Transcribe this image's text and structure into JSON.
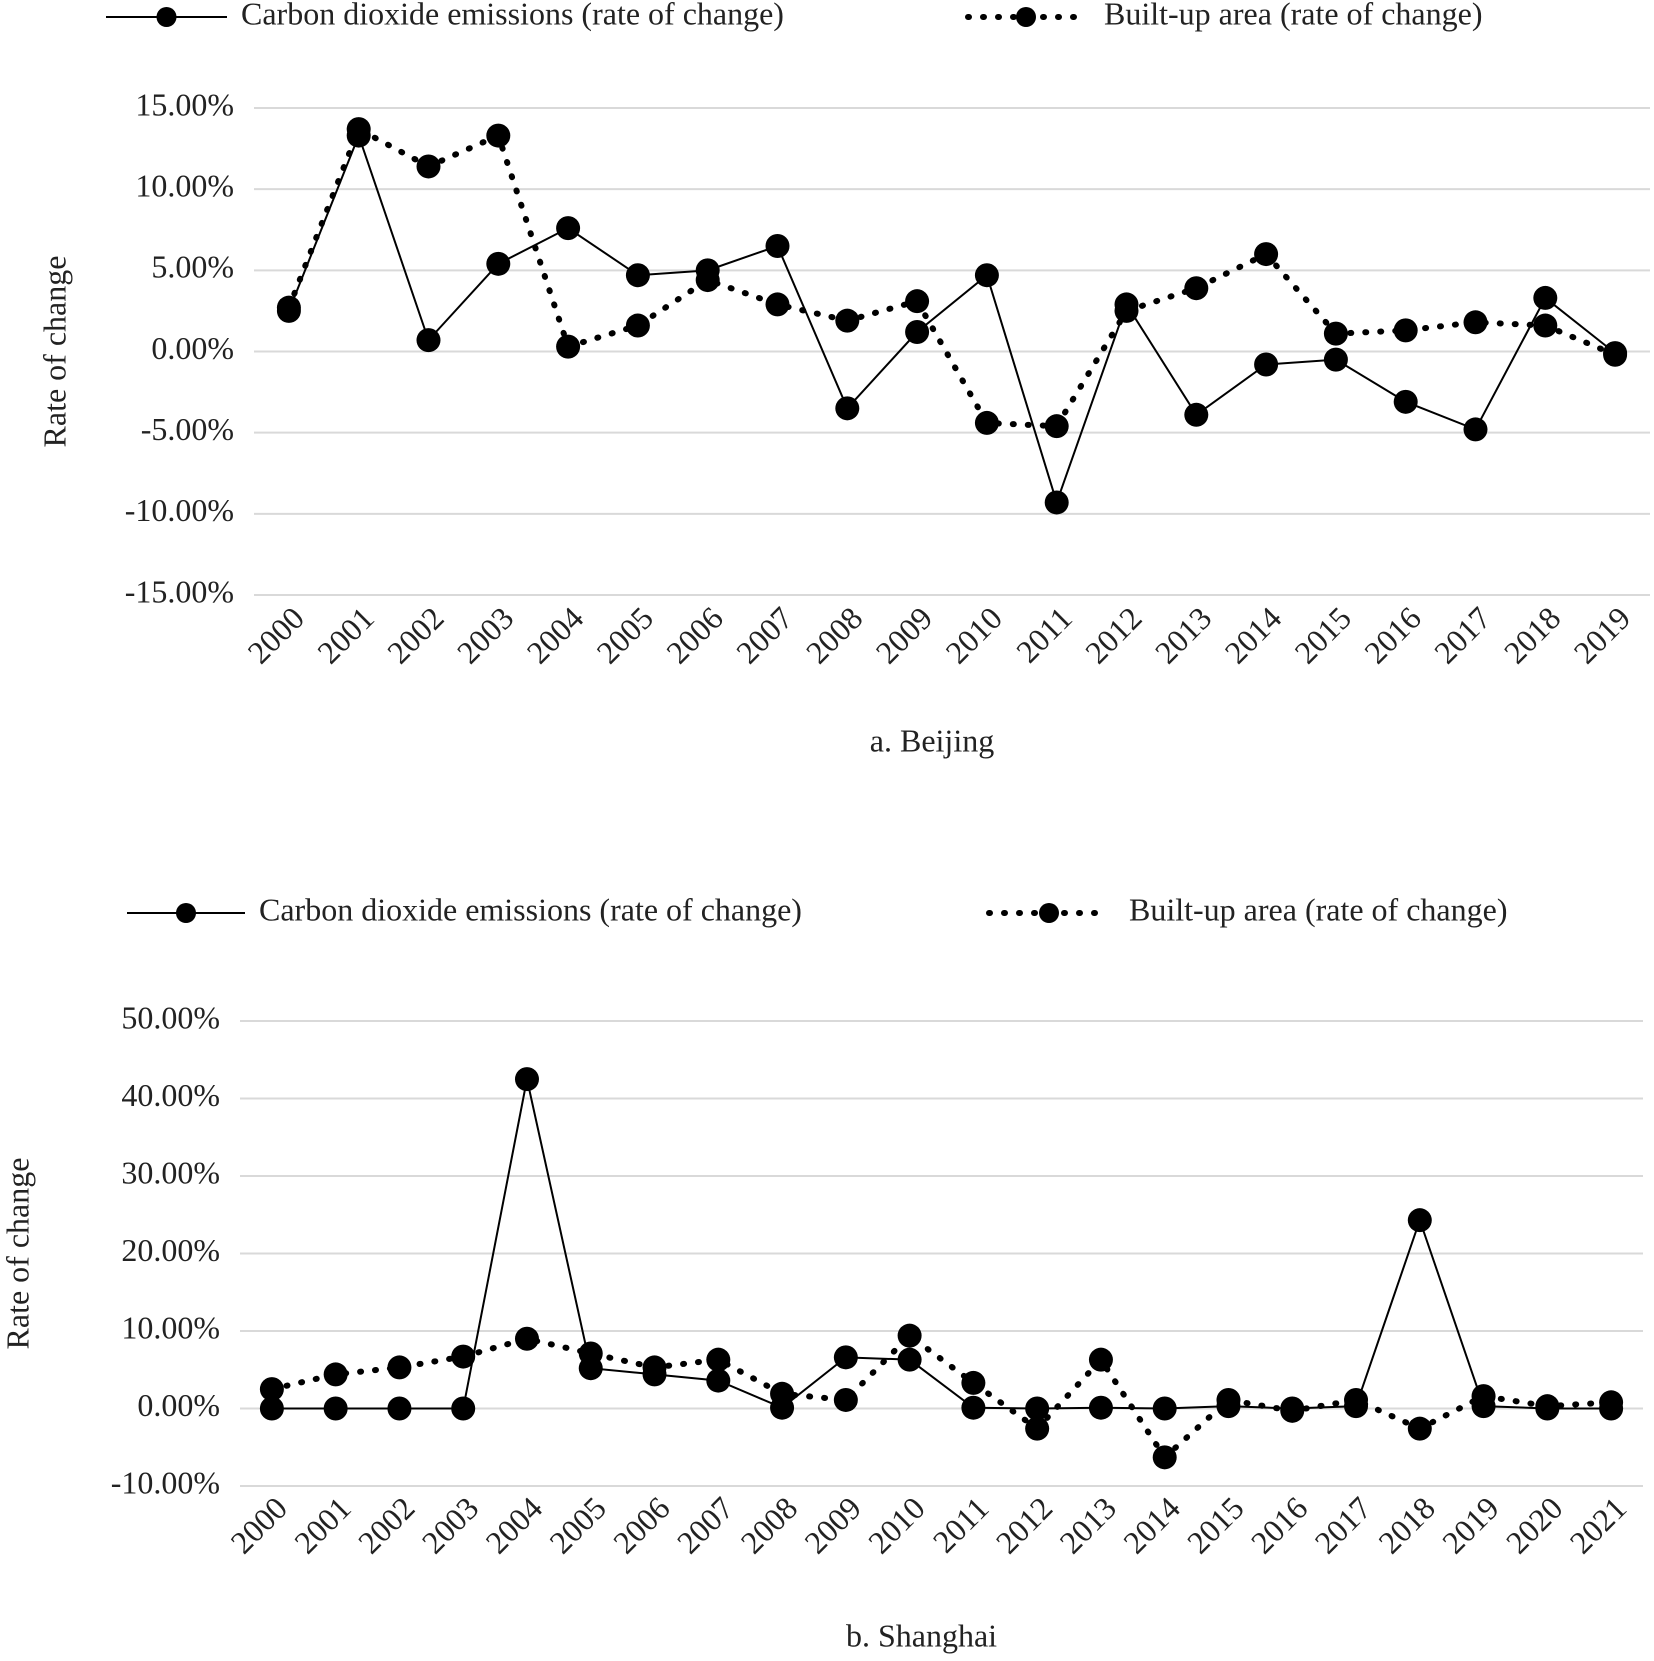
{
  "chart_data": [
    {
      "type": "line",
      "title": "a. Beijing",
      "ylabel": "Rate of change",
      "categories": [
        "2000",
        "2001",
        "2002",
        "2003",
        "2004",
        "2005",
        "2006",
        "2007",
        "2008",
        "2009",
        "2010",
        "2011",
        "2012",
        "2013",
        "2014",
        "2015",
        "2016",
        "2017",
        "2018",
        "2019"
      ],
      "series": [
        {
          "name": "Carbon dioxide emissions (rate of change)",
          "color": "#000000",
          "line_style": "solid",
          "values": [
            2.5,
            13.3,
            0.7,
            5.4,
            7.6,
            4.7,
            5.0,
            6.5,
            -3.5,
            1.2,
            4.7,
            -9.3,
            2.9,
            -3.9,
            -0.8,
            -0.5,
            -3.1,
            -4.8,
            3.3,
            -0.1
          ]
        },
        {
          "name": "Built-up area (rate of change)",
          "color": "#000000",
          "line_style": "dotted",
          "values": [
            2.7,
            13.7,
            11.4,
            13.3,
            0.3,
            1.6,
            4.4,
            2.9,
            1.9,
            3.1,
            -4.4,
            -4.6,
            2.5,
            3.9,
            6.0,
            1.1,
            1.3,
            1.8,
            1.6,
            -0.2
          ]
        }
      ],
      "ylim": [
        -15,
        15
      ],
      "yticks": [
        {
          "value": -15,
          "label": "-15.00%"
        },
        {
          "value": -10,
          "label": "-10.00%"
        },
        {
          "value": -5,
          "label": "-5.00%"
        },
        {
          "value": 0,
          "label": "0.00%"
        },
        {
          "value": 5,
          "label": "5.00%"
        },
        {
          "value": 10,
          "label": "10.00%"
        },
        {
          "value": 15,
          "label": "15.00%"
        }
      ],
      "grid": true,
      "legend": "top"
    },
    {
      "type": "line",
      "title": "b. Shanghai",
      "ylabel": "Rate of change",
      "categories": [
        "2000",
        "2001",
        "2002",
        "2003",
        "2004",
        "2005",
        "2006",
        "2007",
        "2008",
        "2009",
        "2010",
        "2011",
        "2012",
        "2013",
        "2014",
        "2015",
        "2016",
        "2017",
        "2018",
        "2019",
        "2020",
        "2021"
      ],
      "series": [
        {
          "name": "Carbon dioxide emissions (rate of change)",
          "color": "#000000",
          "line_style": "solid",
          "values": [
            0,
            0,
            0,
            0,
            42.5,
            5.2,
            4.4,
            3.6,
            0.1,
            6.6,
            6.3,
            0.1,
            0,
            0.1,
            0,
            0.3,
            0,
            0.3,
            24.3,
            0.3,
            0,
            0
          ]
        },
        {
          "name": "Built-up area (rate of change)",
          "color": "#000000",
          "line_style": "dotted",
          "values": [
            2.5,
            4.4,
            5.3,
            6.7,
            9.0,
            7.1,
            5.3,
            6.3,
            1.9,
            1.1,
            9.4,
            3.3,
            -2.6,
            6.3,
            -6.3,
            1.1,
            -0.3,
            1.1,
            -2.6,
            1.6,
            0.3,
            0.8
          ]
        }
      ],
      "ylim": [
        -10,
        50
      ],
      "yticks": [
        {
          "value": -10,
          "label": "-10.00%"
        },
        {
          "value": 0,
          "label": "0.00%"
        },
        {
          "value": 10,
          "label": "10.00%"
        },
        {
          "value": 20,
          "label": "20.00%"
        },
        {
          "value": 30,
          "label": "30.00%"
        },
        {
          "value": 40,
          "label": "40.00%"
        },
        {
          "value": 50,
          "label": "50.00%"
        }
      ],
      "grid": true,
      "legend": "top"
    }
  ]
}
